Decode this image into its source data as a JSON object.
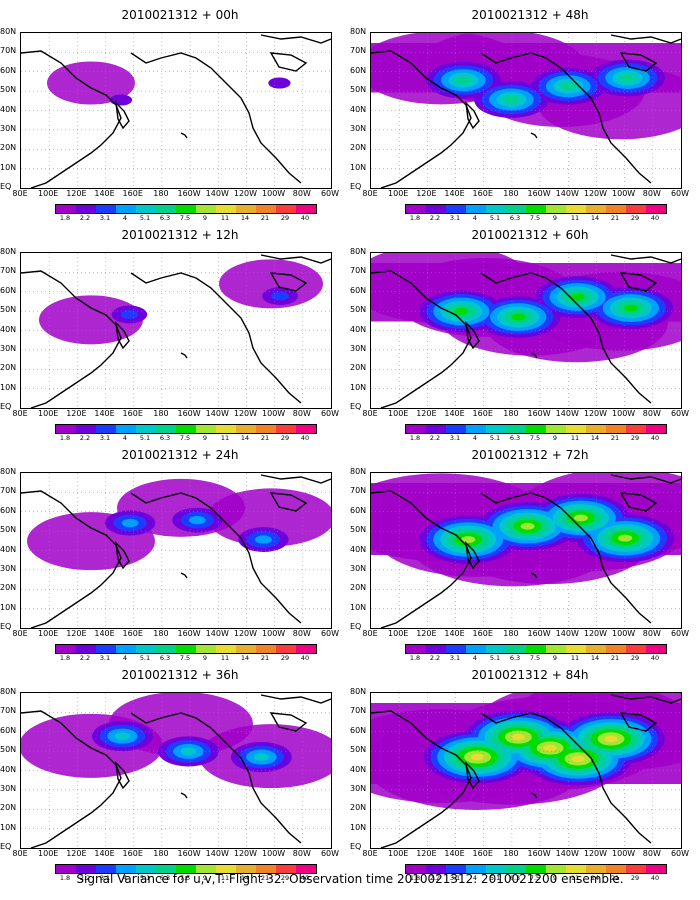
{
  "caption": "Signal Variance for u,v,T. Flight 32. Observation time 2010021312. 2010021200 ensemble.",
  "lat_labels": [
    "80N",
    "70N",
    "60N",
    "50N",
    "40N",
    "30N",
    "20N",
    "10N",
    "EQ"
  ],
  "lon_labels": [
    "80E",
    "100E",
    "120E",
    "140E",
    "160E",
    "180",
    "160W",
    "140W",
    "120W",
    "100W",
    "80W",
    "60W"
  ],
  "colorbar": {
    "levels": [
      "1.8",
      "2.2",
      "3.1",
      "4",
      "5.1",
      "6.3",
      "7.5",
      "9",
      "11",
      "14",
      "21",
      "29",
      "40"
    ],
    "colors": [
      "#a000c8",
      "#6e00dc",
      "#1e3cff",
      "#00a0ff",
      "#00c8c8",
      "#00d28c",
      "#00dc00",
      "#a0e632",
      "#e6dc32",
      "#e6af2d",
      "#f08228",
      "#fa3c3c",
      "#f00082"
    ]
  },
  "panels": [
    {
      "title": "2010021312 + 00h",
      "intensity": 0.05
    },
    {
      "title": "2010021312 + 12h",
      "intensity": 0.15
    },
    {
      "title": "2010021312 + 24h",
      "intensity": 0.3
    },
    {
      "title": "2010021312 + 36h",
      "intensity": 0.4
    },
    {
      "title": "2010021312 + 48h",
      "intensity": 0.55
    },
    {
      "title": "2010021312 + 60h",
      "intensity": 0.65
    },
    {
      "title": "2010021312 + 72h",
      "intensity": 0.8
    },
    {
      "title": "2010021312 + 84h",
      "intensity": 0.9
    }
  ]
}
